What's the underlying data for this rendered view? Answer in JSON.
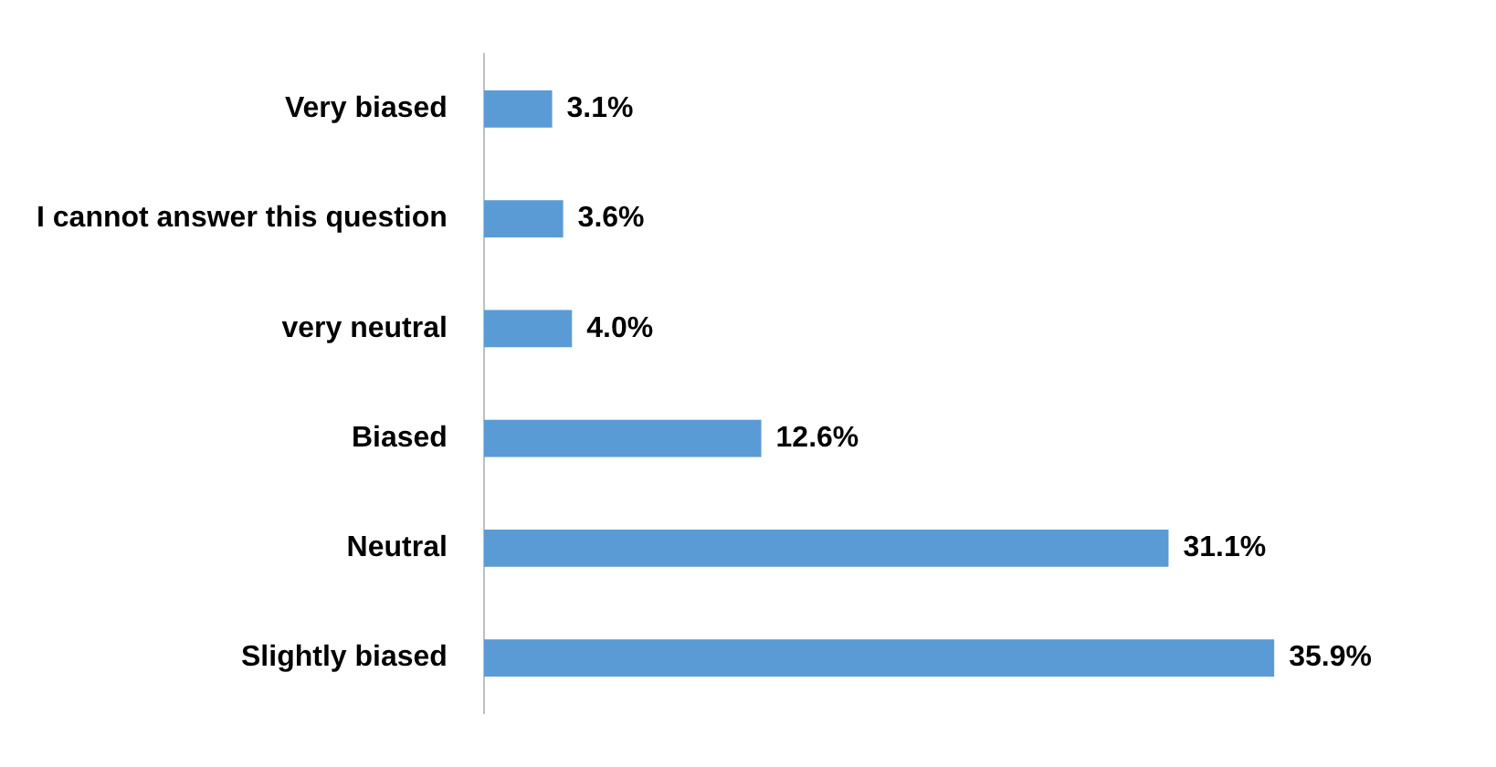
{
  "chart_data": {
    "type": "bar",
    "orientation": "horizontal",
    "categories": [
      "Very biased",
      "I cannot answer this question",
      "very neutral",
      "Biased",
      "Neutral",
      "Slightly biased"
    ],
    "values": [
      3.1,
      3.6,
      4.0,
      12.6,
      31.1,
      35.9
    ],
    "value_labels": [
      "3.1%",
      "3.6%",
      "4.0%",
      "12.6%",
      "31.1%",
      "35.9%"
    ],
    "color": "#5b9bd5",
    "grid": false,
    "legend": false
  }
}
